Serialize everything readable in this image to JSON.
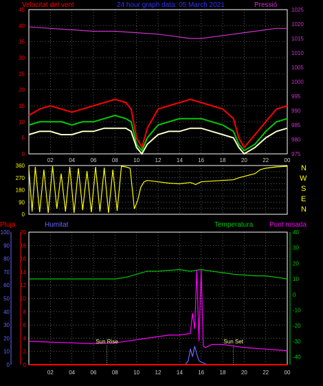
{
  "chart_data": [
    {
      "type": "line",
      "title": "24 hour graph data: 05 March 2021",
      "left_axis_label": "Velocitat del vent",
      "right_axis_label": "Pressió",
      "left_ylim": [
        0,
        45
      ],
      "left_ticks": [
        0,
        5,
        10,
        15,
        20,
        25,
        30,
        35,
        40,
        45
      ],
      "right_ylim": [
        975,
        1025
      ],
      "right_ticks": [
        975,
        980,
        985,
        990,
        995,
        1000,
        1005,
        1010,
        1015,
        1020,
        1025
      ],
      "xlim": [
        0,
        24
      ],
      "x_ticks": [
        "02",
        "04",
        "06",
        "08",
        "10",
        "12",
        "14",
        "16",
        "18",
        "20",
        "22",
        "00"
      ],
      "grid": true,
      "series": [
        {
          "key": "gust",
          "color": "#ff0000",
          "axis": "left",
          "x": [
            0,
            1,
            2,
            3,
            4,
            5,
            6,
            7,
            8,
            9,
            9.5,
            10,
            10.5,
            11,
            12,
            13,
            14,
            15,
            16,
            17,
            18,
            19,
            19.5,
            20,
            21,
            22,
            23,
            24
          ],
          "y": [
            12,
            14,
            15,
            14,
            13,
            14,
            15,
            16,
            17,
            16,
            14,
            5,
            2,
            8,
            14,
            15,
            16,
            17,
            16,
            15,
            14,
            11,
            5,
            2,
            6,
            10,
            14,
            15
          ]
        },
        {
          "key": "speed",
          "color": "#00cc00",
          "axis": "left",
          "x": [
            0,
            1,
            2,
            3,
            4,
            5,
            6,
            7,
            8,
            9,
            9.5,
            10,
            10.5,
            11,
            12,
            13,
            14,
            15,
            16,
            17,
            18,
            19,
            19.5,
            20,
            21,
            22,
            23,
            24
          ],
          "y": [
            9,
            10,
            10,
            10,
            9,
            10,
            10,
            11,
            12,
            11,
            10,
            3,
            1,
            5,
            9,
            10,
            11,
            11,
            11,
            10,
            9,
            7,
            3,
            1,
            3,
            7,
            10,
            11
          ]
        },
        {
          "key": "average",
          "color": "#ffffcc",
          "axis": "left",
          "x": [
            0,
            1,
            2,
            3,
            4,
            5,
            6,
            7,
            8,
            9,
            9.5,
            10,
            10.5,
            11,
            12,
            13,
            14,
            15,
            16,
            17,
            18,
            19,
            19.5,
            20,
            21,
            22,
            23,
            24
          ],
          "y": [
            6,
            7,
            7,
            6,
            6,
            7,
            7,
            8,
            8,
            8,
            7,
            2,
            0,
            3,
            6,
            7,
            7,
            8,
            8,
            7,
            6,
            5,
            2,
            0,
            2,
            5,
            7,
            8
          ]
        },
        {
          "key": "pressure",
          "color": "#cc33cc",
          "axis": "right",
          "x": [
            0,
            2,
            4,
            6,
            8,
            10,
            12,
            14,
            15,
            16,
            18,
            20,
            22,
            23,
            24
          ],
          "y": [
            1019,
            1018.5,
            1018,
            1017.5,
            1017.5,
            1017,
            1016.5,
            1015.5,
            1015,
            1015,
            1016,
            1017,
            1018,
            1018.5,
            1018.5
          ]
        }
      ]
    },
    {
      "type": "line",
      "direction_labels": [
        "N",
        "W",
        "S",
        "E",
        "N"
      ],
      "ylim": [
        0,
        360
      ],
      "y_ticks": [
        0,
        45,
        90,
        135,
        180,
        225,
        270,
        315,
        360
      ],
      "xlim": [
        0,
        24
      ],
      "grid": true,
      "series": [
        {
          "key": "direction",
          "color": "#ffff00",
          "x": [
            0,
            0.3,
            0.6,
            1.0,
            1.4,
            1.8,
            2.2,
            2.6,
            3.0,
            3.4,
            3.8,
            4.2,
            4.6,
            5.0,
            5.4,
            5.8,
            6.2,
            6.6,
            7.0,
            7.4,
            7.8,
            8.2,
            8.6,
            9.0,
            9.4,
            9.8,
            10.1,
            10.4,
            10.7,
            11,
            12,
            13,
            14,
            15,
            15.5,
            16,
            17,
            18,
            19,
            19.5,
            20,
            21,
            21.5,
            22,
            23,
            24
          ],
          "y": [
            340,
            20,
            350,
            15,
            330,
            10,
            355,
            40,
            300,
            20,
            350,
            10,
            340,
            30,
            320,
            15,
            350,
            20,
            345,
            10,
            330,
            25,
            355,
            350,
            340,
            40,
            100,
            200,
            240,
            250,
            240,
            230,
            225,
            235,
            220,
            240,
            245,
            250,
            255,
            270,
            280,
            300,
            330,
            340,
            350,
            355
          ]
        }
      ]
    },
    {
      "type": "line",
      "left_axis_label": "Pluja",
      "left_ylim": [
        0,
        20
      ],
      "left_ticks": [
        0,
        2,
        4,
        6,
        8,
        10,
        12,
        14,
        16,
        18,
        20
      ],
      "humidity_label": "Humitat",
      "humidity_ylim": [
        0,
        100
      ],
      "humidity_ticks": [
        0,
        10,
        20,
        30,
        40,
        50,
        60,
        70,
        80,
        90,
        100
      ],
      "temperature_label": "Temperatura",
      "dewpoint_label": "Punt rosada",
      "right_ylim": [
        -45,
        40
      ],
      "right_ticks": [
        -40,
        -30,
        -20,
        -10,
        0,
        10,
        20,
        30,
        40
      ],
      "xlim": [
        0,
        24
      ],
      "x_ticks": [
        "02",
        "04",
        "06",
        "08",
        "10",
        "12",
        "14",
        "16",
        "18",
        "20",
        "22",
        "00"
      ],
      "grid": true,
      "annotations": [
        {
          "x": 7.25,
          "text": "Sun Rise",
          "color": "#ffff99"
        },
        {
          "x": 19.0,
          "text": "Sun Set",
          "color": "#ffff99"
        }
      ],
      "series": [
        {
          "key": "temperature",
          "color": "#00cc00",
          "axis": "right",
          "x": [
            0,
            2,
            4,
            6,
            8,
            9,
            10,
            11,
            12,
            13,
            14,
            15,
            16,
            17,
            18,
            19,
            20,
            21,
            22,
            23,
            24
          ],
          "y": [
            10,
            10,
            10,
            10,
            10,
            11,
            13,
            15,
            15,
            15.5,
            16,
            15,
            16,
            15,
            14,
            13,
            12.5,
            12,
            12,
            11,
            10
          ]
        },
        {
          "key": "dewpoint",
          "color": "#ff00ff",
          "axis": "right",
          "x": [
            0,
            2,
            4,
            6,
            8,
            10,
            11,
            12,
            13,
            14,
            15,
            15.2,
            15.4,
            15.6,
            15.8,
            16,
            16.2,
            16.4,
            17,
            18,
            19,
            20,
            22,
            24
          ],
          "y": [
            -30,
            -30.5,
            -31,
            -31.5,
            -31,
            -29,
            -28,
            -27,
            -26,
            -26,
            -25,
            -12,
            -22,
            16,
            -30,
            16,
            -33,
            -34,
            -32,
            -32,
            -33,
            -34,
            -35,
            -36
          ]
        },
        {
          "key": "humidity",
          "color": "#6666ff",
          "axis": "humidity",
          "x": [
            0,
            14.5,
            14.8,
            15.0,
            15.2,
            15.4,
            15.6,
            15.8,
            16.0,
            16.3,
            16.6,
            24
          ],
          "y": [
            0,
            0,
            3,
            12,
            6,
            14,
            8,
            3,
            2,
            1,
            0,
            0
          ]
        },
        {
          "key": "rain",
          "color": "#ff0000",
          "axis": "left",
          "x": [
            0,
            24
          ],
          "y": [
            0,
            0
          ]
        }
      ]
    }
  ]
}
